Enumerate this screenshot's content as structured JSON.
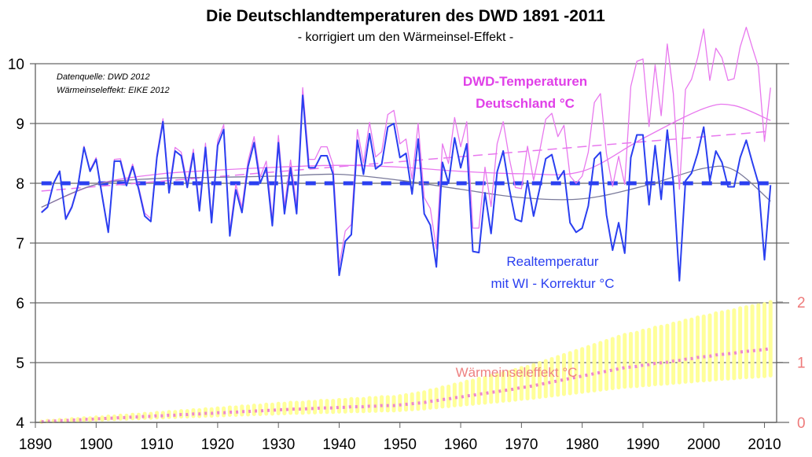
{
  "chart_data": {
    "type": "line",
    "title": "Die Deutschlandtemperaturen des DWD 1891 -2011",
    "subtitle": "- korrigiert um den Wärmeinsel-Effekt -",
    "notes": [
      "Datenquelle: DWD 2012",
      "Wärmeinseleffekt: EIKE 2012"
    ],
    "xlim": [
      1890,
      2012
    ],
    "ylim": [
      4,
      10
    ],
    "y2lim": [
      0,
      2
    ],
    "x_ticks": [
      "1890",
      "1900",
      "1910",
      "1920",
      "1930",
      "1940",
      "1950",
      "1960",
      "1970",
      "1980",
      "1990",
      "2000",
      "2010"
    ],
    "y_ticks": [
      "4",
      "5",
      "6",
      "7",
      "8",
      "9",
      "10"
    ],
    "y2_ticks": [
      "0",
      "1",
      "2"
    ],
    "grid": true,
    "colors": {
      "real": "#2a3ff0",
      "dwd": "#e878ee",
      "dwd_label": "#e040e8",
      "trend_gray": "#7a7a9a",
      "wi_band": "#ffff99",
      "wi_line": "#ee88cc",
      "wi_label": "#ee8080",
      "grid": "#808080"
    },
    "labels": {
      "dwd_line1": "DWD-Temperaturen",
      "dwd_line2": "Deutschland °C",
      "real_line1": "Realtemperatur",
      "real_line2": "mit WI - Korrektur °C",
      "wi": "Wärmeinseleffekt °C"
    },
    "years_start": 1891,
    "series": [
      {
        "name": "Realtemperatur mit WI - Korrektur °C",
        "axis": "left",
        "values": [
          7.51,
          7.6,
          8.0,
          8.2,
          7.4,
          7.6,
          7.95,
          8.6,
          8.2,
          8.4,
          7.78,
          7.18,
          8.37,
          8.37,
          7.96,
          8.28,
          7.9,
          7.45,
          7.36,
          8.43,
          9.03,
          7.84,
          8.54,
          8.46,
          7.93,
          8.5,
          7.54,
          8.6,
          7.34,
          8.63,
          8.9,
          7.12,
          7.89,
          7.51,
          8.28,
          8.68,
          8.0,
          8.26,
          7.29,
          8.68,
          7.49,
          8.26,
          7.49,
          9.47,
          8.26,
          8.26,
          8.46,
          8.46,
          8.15,
          6.46,
          7.03,
          7.14,
          8.72,
          8.15,
          8.83,
          8.24,
          8.32,
          8.94,
          9.0,
          8.43,
          8.5,
          7.82,
          8.74,
          7.49,
          7.3,
          6.6,
          8.35,
          8.0,
          8.76,
          8.26,
          8.66,
          6.86,
          6.84,
          7.84,
          7.16,
          8.19,
          8.54,
          7.91,
          7.4,
          7.36,
          8.04,
          7.45,
          7.91,
          8.41,
          8.48,
          8.06,
          8.21,
          7.34,
          7.18,
          7.25,
          7.62,
          8.41,
          8.52,
          7.47,
          6.88,
          7.34,
          6.83,
          8.43,
          8.81,
          8.81,
          7.64,
          8.63,
          7.73,
          8.89,
          8.02,
          6.37,
          8.04,
          8.17,
          8.5,
          8.94,
          8.04,
          8.54,
          8.35,
          7.94,
          7.94,
          8.43,
          8.72,
          8.35,
          8.0,
          6.72,
          7.97
        ]
      },
      {
        "name": "DWD-Temperaturen Deutschland °C",
        "axis": "left",
        "values": [
          7.52,
          7.61,
          8.01,
          8.21,
          7.42,
          7.62,
          7.97,
          8.62,
          8.22,
          8.43,
          7.81,
          7.21,
          8.4,
          8.41,
          8.0,
          8.32,
          7.94,
          7.5,
          7.41,
          8.48,
          9.08,
          7.9,
          8.6,
          8.52,
          8.0,
          8.57,
          7.61,
          8.67,
          7.42,
          8.71,
          8.98,
          7.2,
          7.98,
          7.6,
          8.37,
          8.78,
          8.1,
          8.37,
          7.4,
          8.8,
          7.61,
          8.39,
          7.62,
          9.6,
          8.4,
          8.4,
          8.61,
          8.61,
          8.31,
          6.62,
          7.2,
          7.31,
          8.9,
          8.34,
          9.02,
          8.44,
          8.53,
          9.15,
          9.22,
          8.66,
          8.74,
          8.07,
          9.0,
          7.76,
          7.58,
          6.9,
          8.66,
          8.33,
          9.1,
          8.61,
          9.03,
          7.25,
          7.25,
          8.27,
          7.61,
          8.66,
          9.03,
          8.42,
          7.93,
          7.91,
          8.62,
          8.05,
          8.54,
          9.07,
          9.17,
          8.78,
          8.97,
          8.12,
          8.0,
          8.12,
          8.52,
          9.35,
          9.5,
          8.49,
          7.95,
          8.45,
          7.98,
          9.62,
          10.04,
          10.08,
          8.95,
          9.98,
          9.13,
          10.33,
          9.5,
          7.9,
          9.57,
          9.74,
          10.1,
          10.58,
          9.72,
          10.26,
          10.1,
          9.72,
          9.75,
          10.28,
          10.61,
          10.27,
          9.95,
          8.7,
          9.6
        ]
      },
      {
        "name": "Wärmeinseleffekt °C",
        "axis": "right",
        "values": [
          0.01,
          0.02,
          0.02,
          0.03,
          0.03,
          0.04,
          0.04,
          0.05,
          0.05,
          0.06,
          0.06,
          0.07,
          0.07,
          0.08,
          0.08,
          0.09,
          0.09,
          0.1,
          0.1,
          0.11,
          0.11,
          0.12,
          0.12,
          0.13,
          0.13,
          0.14,
          0.14,
          0.15,
          0.15,
          0.16,
          0.16,
          0.17,
          0.17,
          0.18,
          0.18,
          0.19,
          0.19,
          0.2,
          0.2,
          0.21,
          0.21,
          0.22,
          0.22,
          0.22,
          0.23,
          0.23,
          0.24,
          0.24,
          0.24,
          0.25,
          0.25,
          0.26,
          0.26,
          0.26,
          0.27,
          0.27,
          0.28,
          0.28,
          0.28,
          0.29,
          0.3,
          0.31,
          0.32,
          0.33,
          0.35,
          0.36,
          0.38,
          0.39,
          0.41,
          0.42,
          0.44,
          0.45,
          0.47,
          0.48,
          0.5,
          0.51,
          0.53,
          0.54,
          0.56,
          0.58,
          0.59,
          0.61,
          0.63,
          0.65,
          0.67,
          0.69,
          0.71,
          0.73,
          0.75,
          0.77,
          0.79,
          0.81,
          0.83,
          0.85,
          0.87,
          0.89,
          0.91,
          0.92,
          0.93,
          0.95,
          0.96,
          0.98,
          0.99,
          1.0,
          1.02,
          1.03,
          1.05,
          1.06,
          1.08,
          1.09,
          1.1,
          1.12,
          1.13,
          1.14,
          1.15,
          1.17,
          1.18,
          1.19,
          1.2,
          1.21,
          1.23
        ]
      },
      {
        "name": "Wärmeinseleffekt Schwankungsbreite (Band)",
        "axis": "right",
        "band_low_end": 0.78,
        "band_high_end": 2.0
      },
      {
        "name": "Mittelwert Realtemperatur",
        "axis": "left",
        "style": "dashed",
        "value": 8.0
      },
      {
        "name": "Linearer Trend DWD",
        "axis": "left",
        "style": "dashed",
        "x": [
          1891,
          2011
        ],
        "values": [
          7.87,
          8.87
        ]
      },
      {
        "name": "Polynom Trend DWD",
        "axis": "left",
        "x": [
          1891,
          1900,
          1910,
          1920,
          1930,
          1940,
          1950,
          1960,
          1970,
          1980,
          1990,
          2000,
          2005,
          2011
        ],
        "values": [
          7.6,
          7.98,
          8.15,
          8.22,
          8.27,
          8.3,
          8.27,
          8.2,
          8.16,
          8.2,
          8.75,
          9.25,
          9.3,
          9.05
        ]
      },
      {
        "name": "Polynom Trend Realtemperatur",
        "axis": "left",
        "x": [
          1891,
          1900,
          1910,
          1920,
          1930,
          1940,
          1950,
          1960,
          1970,
          1980,
          1990,
          2000,
          2005,
          2011
        ],
        "values": [
          7.6,
          7.98,
          8.08,
          8.1,
          8.12,
          8.15,
          8.05,
          7.9,
          7.76,
          7.74,
          7.95,
          8.25,
          8.22,
          7.7
        ]
      }
    ]
  }
}
